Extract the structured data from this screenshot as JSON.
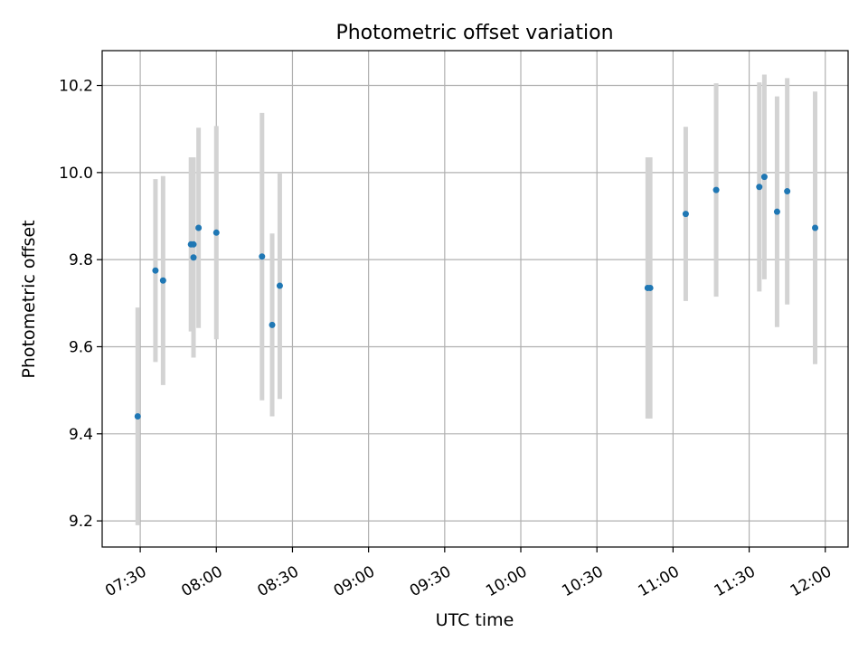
{
  "chart_data": {
    "type": "scatter",
    "title": "Photometric offset variation",
    "xlabel": "UTC time",
    "ylabel": "Photometric offset",
    "xlim": [
      "07:15",
      "12:09"
    ],
    "ylim": [
      9.14,
      10.28
    ],
    "x_ticks": [
      "07:30",
      "08:00",
      "08:30",
      "09:00",
      "09:30",
      "10:00",
      "10:30",
      "11:00",
      "11:30",
      "12:00"
    ],
    "y_ticks": [
      9.2,
      9.4,
      9.6,
      9.8,
      10.0,
      10.2
    ],
    "grid": true,
    "marker_color": "#1f77b4",
    "errorbar_color": "#d3d3d3",
    "points": [
      {
        "t": "07:29",
        "y": 9.44,
        "err": 0.25
      },
      {
        "t": "07:36",
        "y": 9.775,
        "err": 0.21
      },
      {
        "t": "07:39",
        "y": 9.752,
        "err": 0.24
      },
      {
        "t": "07:50",
        "y": 9.835,
        "err": 0.2
      },
      {
        "t": "07:51",
        "y": 9.835,
        "err": 0.2
      },
      {
        "t": "07:51",
        "y": 9.805,
        "err": 0.23
      },
      {
        "t": "07:53",
        "y": 9.873,
        "err": 0.23
      },
      {
        "t": "08:00",
        "y": 9.862,
        "err": 0.245
      },
      {
        "t": "08:18",
        "y": 9.807,
        "err": 0.33
      },
      {
        "t": "08:22",
        "y": 9.65,
        "err": 0.21
      },
      {
        "t": "08:25",
        "y": 9.74,
        "err": 0.26
      },
      {
        "t": "10:50",
        "y": 9.735,
        "err": 0.3
      },
      {
        "t": "10:51",
        "y": 9.735,
        "err": 0.3
      },
      {
        "t": "11:05",
        "y": 9.905,
        "err": 0.2
      },
      {
        "t": "11:17",
        "y": 9.96,
        "err": 0.245
      },
      {
        "t": "11:34",
        "y": 9.967,
        "err": 0.24
      },
      {
        "t": "11:36",
        "y": 9.99,
        "err": 0.235
      },
      {
        "t": "11:41",
        "y": 9.91,
        "err": 0.265
      },
      {
        "t": "11:45",
        "y": 9.957,
        "err": 0.26
      },
      {
        "t": "11:56",
        "y": 9.873,
        "err": 0.313
      }
    ]
  }
}
